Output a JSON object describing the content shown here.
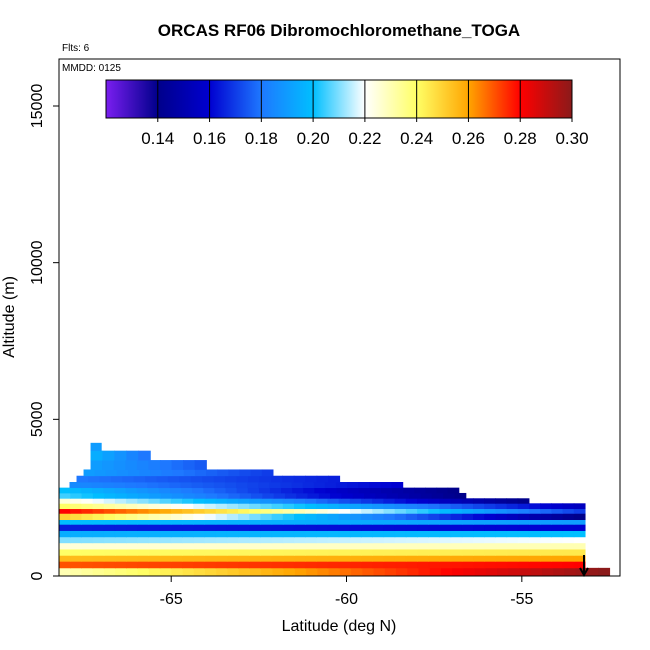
{
  "chart_data": {
    "type": "heatmap",
    "title": "ORCAS RF06 Dibromochloromethane_TOGA",
    "xlabel": "Latitude (deg N)",
    "ylabel": "Altitude (m)",
    "xlim": [
      -68.2,
      -52.2
    ],
    "ylim": [
      0,
      16500
    ],
    "xticks": [
      -65,
      -60,
      -55
    ],
    "xtick_labels": [
      "-65",
      "-60",
      "-55"
    ],
    "yticks": [
      0,
      5000,
      10000,
      15000
    ],
    "ytick_labels": [
      "0",
      "5000",
      "10000",
      "15000"
    ],
    "notes": {
      "flights": "Flts: 6",
      "date": "MMDD: 0125"
    },
    "colorbar": {
      "range": [
        0.12,
        0.3
      ],
      "ticks": [
        0.14,
        0.16,
        0.18,
        0.2,
        0.22,
        0.24,
        0.26,
        0.28,
        0.3
      ],
      "tick_labels": [
        "0.14",
        "0.16",
        "0.18",
        "0.20",
        "0.22",
        "0.24",
        "0.26",
        "0.28",
        "0.30"
      ],
      "stops": [
        "#7a1ef0",
        "#00008b",
        "#0000d0",
        "#1e78ff",
        "#00bfff",
        "#ffffff",
        "#ffff66",
        "#ffa500",
        "#ff0000",
        "#8b1a1a"
      ]
    },
    "bands": [
      {
        "alt": [
          0,
          260
        ],
        "lat": [
          -68.2,
          -52.5
        ],
        "v0": 0.23,
        "v1": 0.3
      },
      {
        "alt": [
          260,
          470
        ],
        "lat": [
          -68.2,
          -53.2
        ],
        "v0": 0.27,
        "v1": 0.28
      },
      {
        "alt": [
          470,
          660
        ],
        "lat": [
          -68.2,
          -53.2
        ],
        "v0": 0.255,
        "v1": 0.26
      },
      {
        "alt": [
          660,
          860
        ],
        "lat": [
          -68.2,
          -53.2
        ],
        "v0": 0.24,
        "v1": 0.245
      },
      {
        "alt": [
          860,
          1060
        ],
        "lat": [
          -68.2,
          -53.2
        ],
        "v0": 0.225,
        "v1": 0.23
      },
      {
        "alt": [
          1060,
          1250
        ],
        "lat": [
          -68.2,
          -53.2
        ],
        "v0": 0.21,
        "v1": 0.22
      },
      {
        "alt": [
          1250,
          1450
        ],
        "lat": [
          -68.2,
          -53.2
        ],
        "v0": 0.195,
        "v1": 0.2
      },
      {
        "alt": [
          1450,
          1650
        ],
        "lat": [
          -68.2,
          -53.2
        ],
        "v0": 0.165,
        "v1": 0.16
      },
      {
        "alt": [
          1650,
          1800
        ],
        "lat": [
          -68.2,
          -53.2
        ],
        "v0": 0.2,
        "v1": 0.19
      },
      {
        "alt": [
          1800,
          2000
        ],
        "lat": [
          -68.2,
          -53.2
        ],
        "v0": 0.25,
        "v1": 0.14
      },
      {
        "alt": [
          2000,
          2150
        ],
        "lat": [
          -68.2,
          -53.2
        ],
        "v0": 0.28,
        "v1": 0.17
      },
      {
        "alt": [
          2150,
          2320
        ],
        "lat": [
          -68.2,
          -53.2
        ],
        "v0": 0.24,
        "v1": 0.155
      },
      {
        "alt": [
          2320,
          2480
        ],
        "lat": [
          -68.2,
          -54.8
        ],
        "v0": 0.225,
        "v1": 0.14
      },
      {
        "alt": [
          2480,
          2650
        ],
        "lat": [
          -68.2,
          -56.6
        ],
        "v0": 0.205,
        "v1": 0.14
      },
      {
        "alt": [
          2650,
          2820
        ],
        "lat": [
          -68.2,
          -56.8
        ],
        "v0": 0.2,
        "v1": 0.14
      },
      {
        "alt": [
          2820,
          3000
        ],
        "lat": [
          -67.9,
          -58.4
        ],
        "v0": 0.185,
        "v1": 0.16
      },
      {
        "alt": [
          3000,
          3200
        ],
        "lat": [
          -67.7,
          -60.2
        ],
        "v0": 0.18,
        "v1": 0.165
      },
      {
        "alt": [
          3200,
          3400
        ],
        "lat": [
          -67.5,
          -62.1
        ],
        "v0": 0.19,
        "v1": 0.17
      },
      {
        "alt": [
          3400,
          3700
        ],
        "lat": [
          -67.3,
          -64.0
        ],
        "v0": 0.19,
        "v1": 0.175
      },
      {
        "alt": [
          3700,
          4000
        ],
        "lat": [
          -67.3,
          -65.6
        ],
        "v0": 0.195,
        "v1": 0.18
      },
      {
        "alt": [
          4000,
          4250
        ],
        "lat": [
          -67.3,
          -67.0
        ],
        "v0": 0.19,
        "v1": 0.19
      }
    ]
  }
}
